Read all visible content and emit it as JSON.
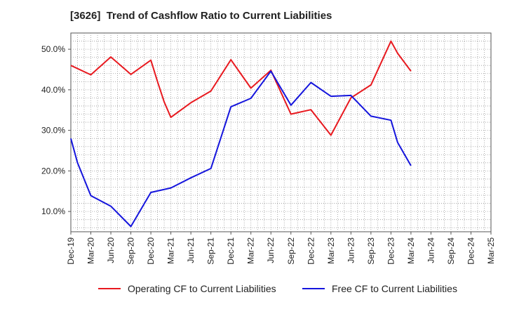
{
  "chart_data": {
    "type": "line",
    "title": "[3626]  Trend of Cashflow Ratio to Current Liabilities",
    "xlabel": "",
    "ylabel": "",
    "x_ticks": [
      "Dec-19",
      "Mar-20",
      "Jun-20",
      "Sep-20",
      "Dec-20",
      "Mar-21",
      "Jun-21",
      "Sep-21",
      "Dec-21",
      "Mar-22",
      "Jun-22",
      "Sep-22",
      "Dec-22",
      "Mar-23",
      "Jun-23",
      "Sep-23",
      "Dec-23",
      "Mar-24",
      "Jun-24",
      "Sep-24",
      "Dec-24",
      "Mar-25"
    ],
    "y_ticks": [
      "10.0%",
      "20.0%",
      "30.0%",
      "40.0%",
      "50.0%"
    ],
    "ylim": [
      5,
      54
    ],
    "grid": true,
    "legend_position": "bottom",
    "series": [
      {
        "name": "Operating CF to Current Liabilities",
        "color": "#e8191f",
        "points": [
          [
            "Dec-19",
            46.0
          ],
          [
            "Mar-20",
            43.7
          ],
          [
            "Jun-20",
            48.1
          ],
          [
            "Sep-20",
            43.8
          ],
          [
            "Dec-20",
            47.3
          ],
          [
            "Jan-21",
            42.0
          ],
          [
            "Feb-21",
            37.0
          ],
          [
            "Mar-21",
            33.2
          ],
          [
            "Jun-21",
            36.8
          ],
          [
            "Sep-21",
            39.7
          ],
          [
            "Dec-21",
            47.4
          ],
          [
            "Mar-22",
            40.4
          ],
          [
            "Jun-22",
            44.8
          ],
          [
            "Sep-22",
            34.0
          ],
          [
            "Dec-22",
            35.1
          ],
          [
            "Mar-23",
            28.8
          ],
          [
            "Jun-23",
            38.0
          ],
          [
            "Sep-23",
            41.2
          ],
          [
            "Dec-23",
            52.0
          ],
          [
            "Jan-24",
            49.0
          ],
          [
            "Mar-24",
            44.6
          ]
        ]
      },
      {
        "name": "Free CF to Current Liabilities",
        "color": "#1515dd",
        "points": [
          [
            "Dec-19",
            28.0
          ],
          [
            "Jan-20",
            22.0
          ],
          [
            "Mar-20",
            13.9
          ],
          [
            "Jun-20",
            11.3
          ],
          [
            "Sep-20",
            6.3
          ],
          [
            "Dec-20",
            14.7
          ],
          [
            "Mar-21",
            15.8
          ],
          [
            "Jun-21",
            18.3
          ],
          [
            "Sep-21",
            20.6
          ],
          [
            "Dec-21",
            35.8
          ],
          [
            "Mar-22",
            37.9
          ],
          [
            "Jun-22",
            44.6
          ],
          [
            "Sep-22",
            36.2
          ],
          [
            "Dec-22",
            41.8
          ],
          [
            "Mar-23",
            38.4
          ],
          [
            "Jun-23",
            38.6
          ],
          [
            "Sep-23",
            33.5
          ],
          [
            "Dec-23",
            32.5
          ],
          [
            "Jan-24",
            27.0
          ],
          [
            "Mar-24",
            21.3
          ]
        ]
      }
    ]
  }
}
